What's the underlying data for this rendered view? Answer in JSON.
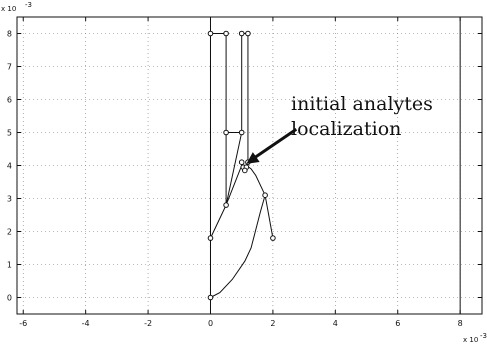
{
  "chart_data": {
    "type": "line",
    "title": "",
    "xlabel": "",
    "ylabel": "",
    "x_exponent_label": "x 10",
    "x_exponent_power": "-3",
    "y_exponent_label": "x 10",
    "y_exponent_power": "-3",
    "xlim": [
      -6.2,
      8.7
    ],
    "ylim": [
      -0.5,
      8.5
    ],
    "grid": true,
    "x_ticks": [
      -6,
      -4,
      -2,
      0,
      2,
      4,
      6,
      8
    ],
    "x_tick_labels": [
      "-6",
      "-4",
      "-2",
      "0",
      "2",
      "4",
      "6",
      "8"
    ],
    "y_ticks": [
      0,
      1,
      2,
      3,
      4,
      5,
      6,
      7,
      8
    ],
    "y_tick_labels": [
      "0",
      "1",
      "2",
      "3",
      "4",
      "5",
      "6",
      "7",
      "8"
    ],
    "vertical_lines_x": [
      0,
      8
    ],
    "series": [
      {
        "x": [
          0,
          0,
          0
        ],
        "y": [
          0,
          1.8,
          8
        ]
      },
      {
        "x": [
          0,
          0.5
        ],
        "y": [
          8,
          8
        ]
      },
      {
        "x": [
          0,
          0.5,
          0.5
        ],
        "y": [
          1.8,
          2.8,
          8
        ]
      },
      {
        "x": [
          0.5,
          1.0,
          1.0
        ],
        "y": [
          2.8,
          5.0,
          8
        ]
      },
      {
        "x": [
          0.5,
          1.0
        ],
        "y": [
          5.0,
          5.0
        ]
      },
      {
        "x": [
          1.0,
          1.2
        ],
        "y": [
          8,
          8
        ]
      },
      {
        "x": [
          1.2,
          1.2
        ],
        "y": [
          8,
          4.0
        ]
      },
      {
        "x": [
          1.0,
          1.2
        ],
        "y": [
          4.0,
          4.0
        ]
      },
      {
        "x": [
          0,
          0.3,
          0.7,
          1.1,
          1.3,
          1.6,
          1.75
        ],
        "y": [
          0,
          0.15,
          0.55,
          1.1,
          1.5,
          2.6,
          3.1
        ]
      },
      {
        "x": [
          1.75,
          1.45,
          1.3,
          1.15,
          1.0,
          0.5
        ],
        "y": [
          3.1,
          3.7,
          3.9,
          4.0,
          4.0,
          2.8
        ]
      },
      {
        "x": [
          1.75,
          2.0
        ],
        "y": [
          3.1,
          1.8
        ]
      }
    ],
    "markers": [
      {
        "x": 0,
        "y": 0
      },
      {
        "x": 0,
        "y": 1.8
      },
      {
        "x": 0,
        "y": 8
      },
      {
        "x": 0.5,
        "y": 8
      },
      {
        "x": 0.5,
        "y": 2.8
      },
      {
        "x": 0.5,
        "y": 5.0
      },
      {
        "x": 1.0,
        "y": 5.0
      },
      {
        "x": 1.0,
        "y": 8
      },
      {
        "x": 1.2,
        "y": 8
      },
      {
        "x": 1.0,
        "y": 4.1
      },
      {
        "x": 1.2,
        "y": 4.1
      },
      {
        "x": 1.05,
        "y": 3.95
      },
      {
        "x": 1.15,
        "y": 3.95
      },
      {
        "x": 1.1,
        "y": 3.85
      },
      {
        "x": 1.75,
        "y": 3.1
      },
      {
        "x": 2.0,
        "y": 1.8
      }
    ],
    "annotation": {
      "lines": [
        "initial analytes",
        "localization"
      ],
      "arrow_to": {
        "x": 1.15,
        "y": 4.05
      },
      "arrow_from": {
        "x": 2.75,
        "y": 5.1
      }
    }
  }
}
